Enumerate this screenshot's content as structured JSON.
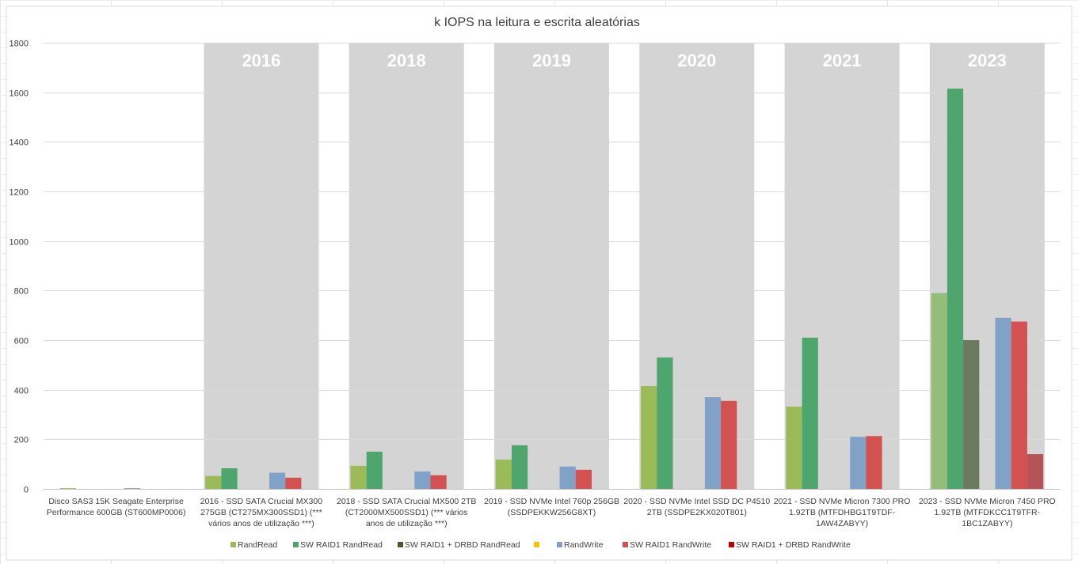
{
  "chart_data": {
    "type": "bar",
    "title": "k IOPS na leitura e escrita aleatórias",
    "ylim": [
      0,
      1800
    ],
    "yticks": [
      0,
      200,
      400,
      600,
      800,
      1000,
      1200,
      1400,
      1600,
      1800
    ],
    "grid": true,
    "legend_position": "bottom",
    "categories": [
      [
        "Disco SAS3 15K Seagate Enterprise",
        "Performance 600GB (ST600MP0006)"
      ],
      [
        "2016 - SSD SATA Crucial MX300",
        "275GB (CT275MX300SSD1) (***",
        "vários anos de utilização ***)"
      ],
      [
        "2018 - SSD SATA Crucial MX500 2TB",
        "(CT2000MX500SSD1) (*** vários",
        "anos de utilização ***)"
      ],
      [
        "2019 - SSD NVMe Intel 760p 256GB",
        "(SSDPEKKW256G8XT)"
      ],
      [
        "2020 - SSD NVMe Intel SSD DC P4510",
        "2TB (SSDPE2KX020T801)"
      ],
      [
        "2021 - SSD NVMe Micron 7300 PRO",
        "1.92TB (MTFDHBG1T9TDF-",
        "1AW4ZABYY)"
      ],
      [
        "2023 - SSD NVMe Micron 7450 PRO",
        "1.92TB (MTFDKCC1T9TFR-",
        "1BC1ZABYY)"
      ]
    ],
    "year_bands": [
      "",
      "2016",
      "2018",
      "2019",
      "2020",
      "2021",
      "2023"
    ],
    "series": [
      {
        "name": "RandRead",
        "color": "#9bbb59",
        "color_highlight": "#93bd79",
        "values": [
          3,
          52,
          93,
          118,
          415,
          332,
          790
        ]
      },
      {
        "name": "SW RAID1 RandRead",
        "color": "#4ea56e",
        "values": [
          0,
          83,
          150,
          176,
          530,
          610,
          1615
        ]
      },
      {
        "name": "SW RAID1 + DRBD RandRead",
        "color": "#3f5f32",
        "color_highlight": "#6b7a5e",
        "values": [
          0,
          0,
          0,
          0,
          0,
          0,
          600
        ]
      },
      {
        "name": "",
        "color": "#ffc000",
        "values": [
          0,
          0,
          0,
          0,
          0,
          0,
          0
        ]
      },
      {
        "name": "RandWrite",
        "color": "#7fa2c6",
        "values": [
          3,
          65,
          70,
          90,
          370,
          210,
          690
        ]
      },
      {
        "name": "SW RAID1 RandWrite",
        "color": "#d35151",
        "values": [
          0,
          45,
          55,
          77,
          355,
          213,
          675
        ]
      },
      {
        "name": "SW RAID1 + DRBD RandWrite",
        "color": "#c00000",
        "color_highlight": "#b55358",
        "values": [
          0,
          0,
          0,
          0,
          0,
          0,
          140
        ]
      }
    ]
  }
}
